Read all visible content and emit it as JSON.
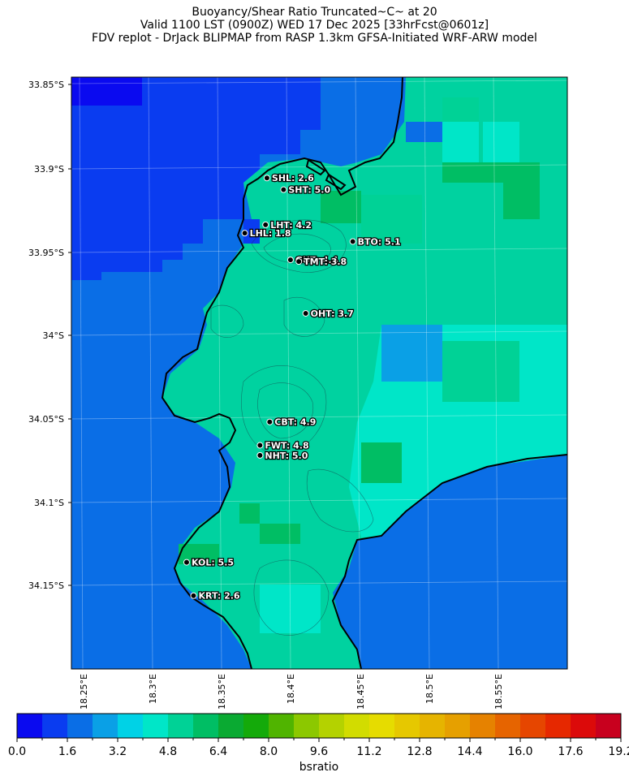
{
  "title": {
    "line1": "Buoyancy/Shear Ratio Truncated~C~    at 20",
    "line2": "Valid 1100 LST (0900Z) WED 17 Dec 2025 [33hrFcst@0601z]",
    "line3": "FDV replot - DrJack BLIPMAP from RASP 1.3km GFSA-Initiated WRF-ARW model"
  },
  "map": {
    "lat_labels": [
      "33.85°S",
      "33.9°S",
      "33.95°S",
      "34°S",
      "34.05°S",
      "34.1°S",
      "34.15°S"
    ],
    "lon_labels": [
      "18.25°E",
      "18.3°E",
      "18.35°E",
      "18.4°E",
      "18.45°E",
      "18.5°E",
      "18.55°E"
    ],
    "stations": [
      {
        "label": "SHL: 2.6",
        "lon": 18.383,
        "lat": -33.906
      },
      {
        "label": "SHT: 5.0",
        "lon": 18.395,
        "lat": -33.913
      },
      {
        "label": "LHT: 4.2",
        "lon": 18.382,
        "lat": -33.934
      },
      {
        "label": "LHL: 1.8",
        "lon": 18.367,
        "lat": -33.939
      },
      {
        "label": "BTO: 5.1",
        "lon": 18.445,
        "lat": -33.944
      },
      {
        "label": "GUT: 4.4",
        "lon": 18.4,
        "lat": -33.955
      },
      {
        "label": "TMT: 3.8",
        "lon": 18.406,
        "lat": -33.956
      },
      {
        "label": "OHT: 3.7",
        "lon": 18.411,
        "lat": -33.987
      },
      {
        "label": "CBT: 4.9",
        "lon": 18.385,
        "lat": -34.052
      },
      {
        "label": "FWT: 4.8",
        "lon": 18.378,
        "lat": -34.066
      },
      {
        "label": "NHT: 5.0",
        "lon": 18.378,
        "lat": -34.072
      },
      {
        "label": "KOL: 5.5",
        "lon": 18.325,
        "lat": -34.136
      },
      {
        "label": "KRT: 2.6",
        "lon": 18.33,
        "lat": -34.156
      }
    ]
  },
  "colorbar": {
    "label": "bsratio",
    "tick_labels": [
      "0.0",
      "1.6",
      "3.2",
      "4.8",
      "6.4",
      "8.0",
      "9.6",
      "11.2",
      "12.8",
      "14.4",
      "16.0",
      "17.6",
      "19.2"
    ],
    "colors": [
      "#0a0af0",
      "#0a3cf0",
      "#0a6ee6",
      "#0aa0e6",
      "#00d2e6",
      "#00e6c8",
      "#00d296",
      "#00be64",
      "#0aaa32",
      "#14aa0a",
      "#50b400",
      "#8cc800",
      "#b4d200",
      "#d2dc00",
      "#e6dc00",
      "#e6c800",
      "#e6b400",
      "#e6a000",
      "#e68200",
      "#e66400",
      "#e64600",
      "#e62800",
      "#dc0a0a",
      "#c8001e"
    ]
  }
}
